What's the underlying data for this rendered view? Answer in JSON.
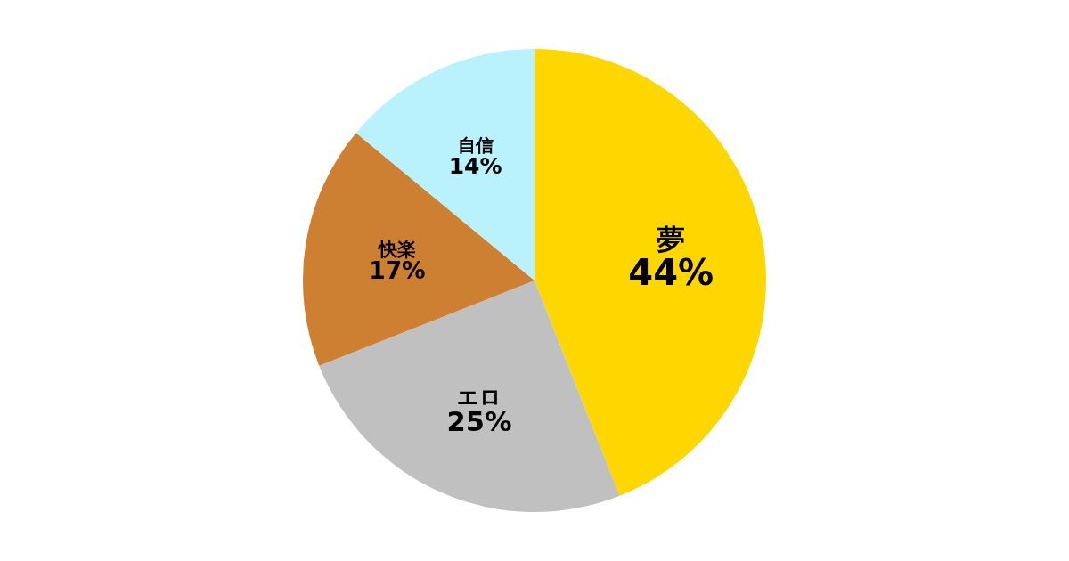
{
  "chart_data": {
    "type": "pie",
    "categories": [
      "夢",
      "エロ",
      "快楽",
      "自信"
    ],
    "values": [
      44,
      25,
      17,
      14
    ],
    "value_labels": [
      "44%",
      "25%",
      "17%",
      "14%"
    ],
    "colors": [
      "#ffd700",
      "#c0c0c0",
      "#cd7f32",
      "#b9f1fd"
    ]
  }
}
